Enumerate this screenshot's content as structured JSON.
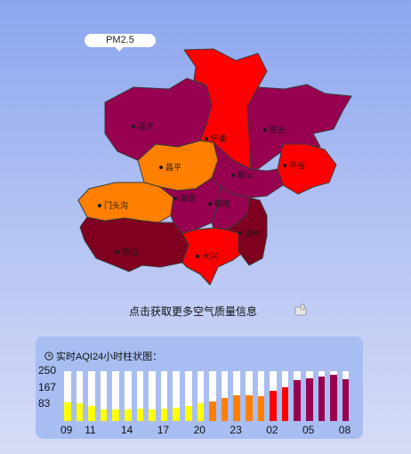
{
  "map": {
    "pollutant_label": "PM2.5",
    "districts": [
      {
        "id": "yanqing",
        "name": "延庆",
        "color": "#980050"
      },
      {
        "id": "huairou",
        "name": "怀柔",
        "color": "#ff0000"
      },
      {
        "id": "miyun",
        "name": "密云",
        "color": "#980050"
      },
      {
        "id": "pinggu",
        "name": "平谷",
        "color": "#ff0000"
      },
      {
        "id": "changping",
        "name": "昌平",
        "color": "#ff8000"
      },
      {
        "id": "shunyi",
        "name": "顺义",
        "color": "#980050"
      },
      {
        "id": "mentougou",
        "name": "门头沟",
        "color": "#ff8000"
      },
      {
        "id": "haidian",
        "name": "海淀",
        "color": "#980050"
      },
      {
        "id": "chaoyang",
        "name": "朝阳",
        "color": "#980050"
      },
      {
        "id": "fangshan",
        "name": "房山",
        "color": "#800020"
      },
      {
        "id": "daxing",
        "name": "大兴",
        "color": "#ff0000"
      },
      {
        "id": "tongzhou",
        "name": "通州",
        "color": "#800020"
      }
    ]
  },
  "more_info_link": "点击获取更多空气质量信息",
  "aqi_panel": {
    "title": "实时AQI24小时柱状图："
  },
  "chart_data": {
    "type": "bar",
    "y_ticks": [
      83,
      167,
      250
    ],
    "ylim": [
      0,
      250
    ],
    "x_tick_labels": [
      "09",
      "11",
      "14",
      "17",
      "20",
      "23",
      "02",
      "05",
      "08"
    ],
    "x_tick_hours_index": [
      0,
      2,
      5,
      8,
      11,
      14,
      17,
      20,
      23
    ],
    "hours": [
      "09",
      "10",
      "11",
      "12",
      "13",
      "14",
      "15",
      "16",
      "17",
      "18",
      "19",
      "20",
      "21",
      "22",
      "23",
      "00",
      "01",
      "02",
      "03",
      "04",
      "05",
      "06",
      "07",
      "08"
    ],
    "values": [
      92,
      88,
      75,
      58,
      58,
      60,
      62,
      60,
      62,
      68,
      75,
      88,
      100,
      115,
      130,
      128,
      125,
      150,
      170,
      205,
      215,
      225,
      232,
      210
    ],
    "colors": [
      "#ffff00",
      "#ffff00",
      "#ffff00",
      "#ffff00",
      "#ffff00",
      "#ffff00",
      "#ffff00",
      "#ffff00",
      "#ffff00",
      "#ffff00",
      "#ffff00",
      "#ffff00",
      "#ff8000",
      "#ff8000",
      "#ff8000",
      "#ff8000",
      "#ff8000",
      "#ff0000",
      "#ff0000",
      "#980050",
      "#980050",
      "#980050",
      "#980050",
      "#980050"
    ]
  }
}
